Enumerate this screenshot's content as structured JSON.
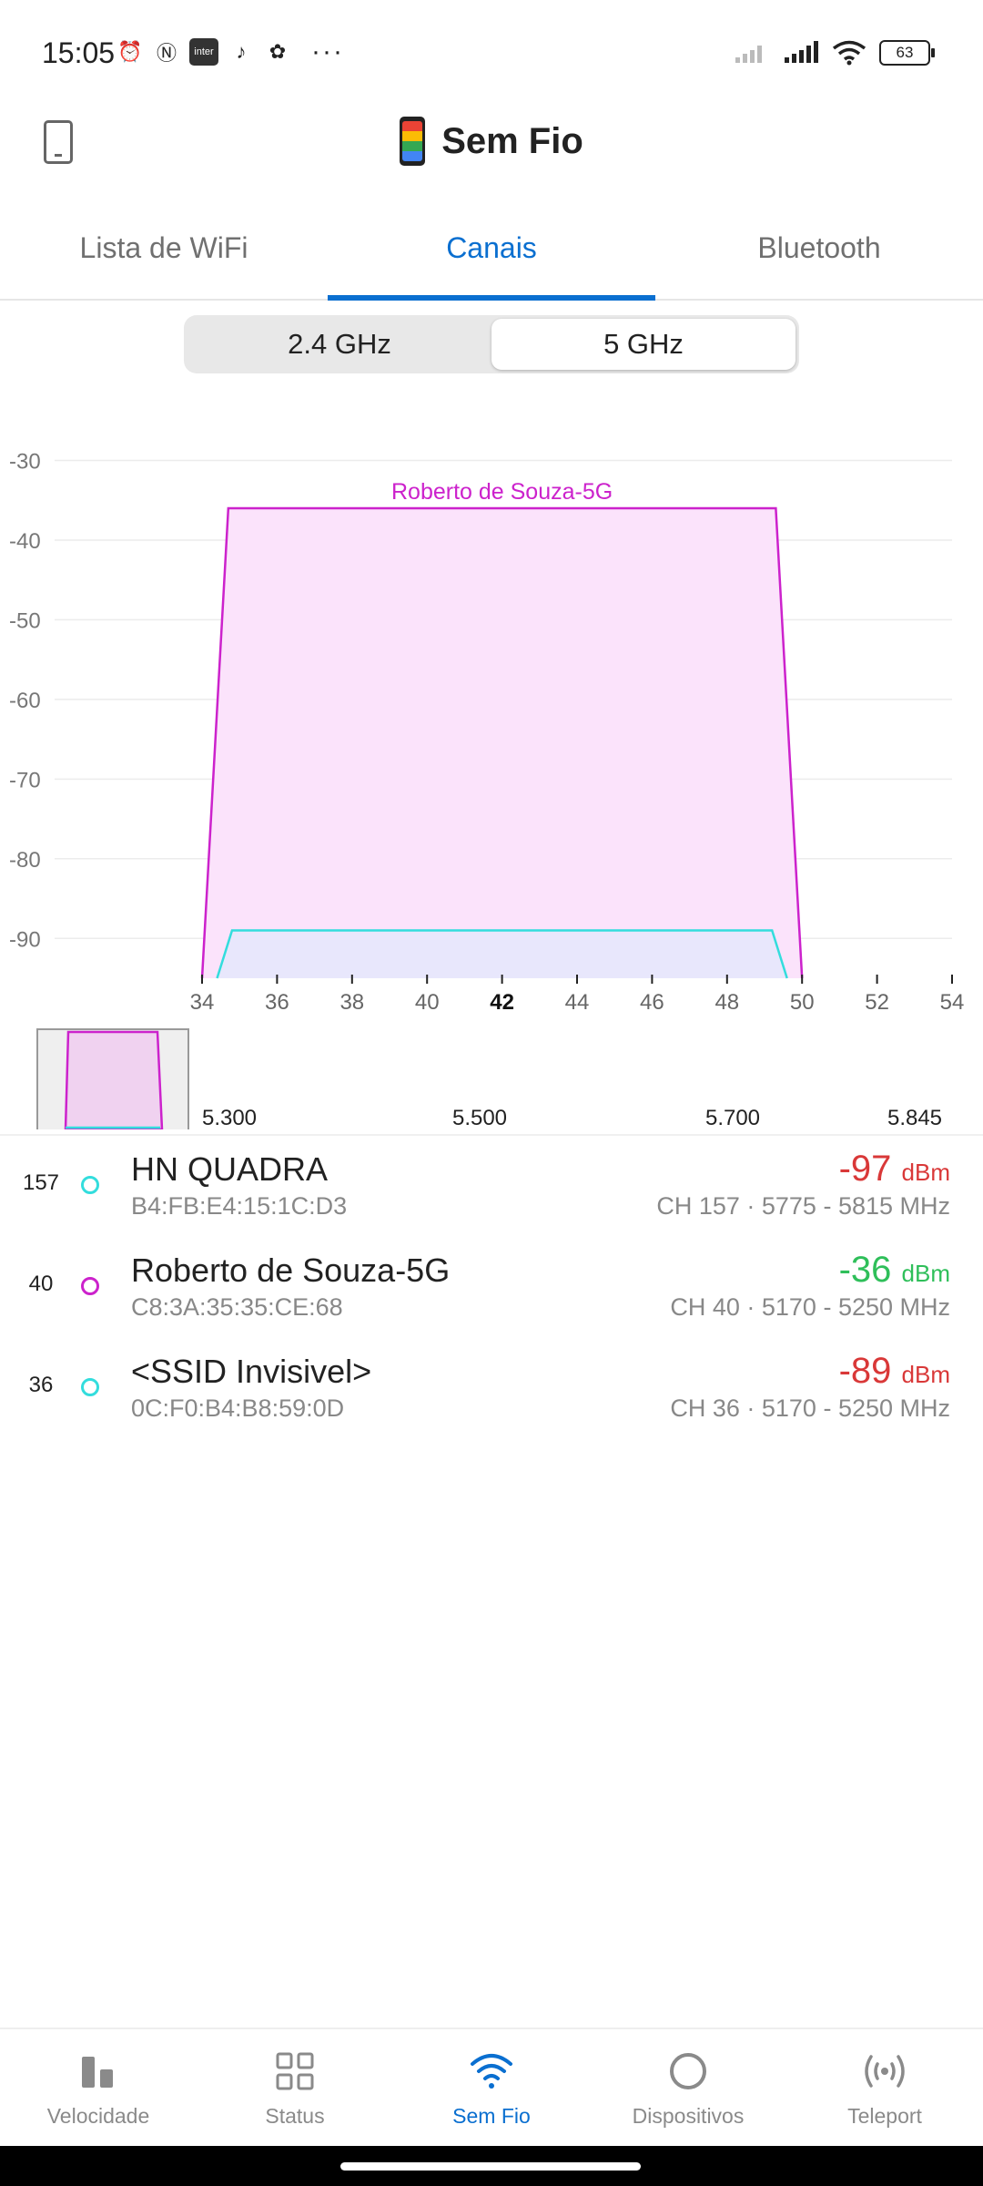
{
  "status_bar": {
    "time": "15:05",
    "left_icons": [
      "alarm-icon",
      "nfc-icon",
      "inter-app-icon",
      "tiktok-icon",
      "photos-icon"
    ],
    "inter_label": "inter",
    "more": "···",
    "battery": "63"
  },
  "header": {
    "title": "Sem Fio"
  },
  "tabs": [
    {
      "label": "Lista de WiFi",
      "active": false
    },
    {
      "label": "Canais",
      "active": true
    },
    {
      "label": "Bluetooth",
      "active": false
    }
  ],
  "band_selector": {
    "options": [
      "2.4 GHz",
      "5 GHz"
    ],
    "selected": "5 GHz"
  },
  "chart_data": {
    "type": "area",
    "y_ticks": [
      -30,
      -40,
      -50,
      -60,
      -70,
      -80,
      -90
    ],
    "ylim": [
      -95,
      -28
    ],
    "x_ticks": [
      "34",
      "36",
      "38",
      "40",
      "42",
      "44",
      "46",
      "48",
      "50",
      "52",
      "54"
    ],
    "x_bold_tick": "42",
    "xlim": [
      34,
      54
    ],
    "grid": true,
    "series": [
      {
        "name": "Roberto de Souza-5G",
        "channel_range": [
          34.7,
          49.3
        ],
        "base_range": [
          34,
          50
        ],
        "signal": -36,
        "color": "#cc22cc",
        "fill": "#fbe3fb"
      },
      {
        "name": "",
        "channel_range": [
          34.8,
          49.2
        ],
        "base_range": [
          34.4,
          49.6
        ],
        "signal": -89,
        "color": "#33dddd",
        "fill": "#e4e8fc"
      }
    ],
    "overview": {
      "freq_labels": [
        "5.300",
        "5.500",
        "5.700",
        "5.845"
      ]
    }
  },
  "access_points": [
    {
      "channel": "157",
      "name": "HN QUADRA",
      "mac": "B4:FB:E4:15:1C:D3",
      "signal": "-97",
      "unit": "dBm",
      "band": "CH 157 · 5775 - 5815 MHz",
      "signal_color": "#d93838",
      "dot_color": "#33dddd"
    },
    {
      "channel": "40",
      "name": "Roberto de Souza-5G",
      "mac": "C8:3A:35:35:CE:68",
      "signal": "-36",
      "unit": "dBm",
      "band": "CH 40 · 5170 - 5250 MHz",
      "signal_color": "#2fbf5a",
      "dot_color": "#cc22cc"
    },
    {
      "channel": "36",
      "name": "<SSID Invisivel>",
      "mac": "0C:F0:B4:B8:59:0D",
      "signal": "-89",
      "unit": "dBm",
      "band": "CH 36 · 5170 - 5250 MHz",
      "signal_color": "#d93838",
      "dot_color": "#33dddd"
    }
  ],
  "bottom_nav": [
    {
      "label": "Velocidade",
      "icon": "bar-chart-icon",
      "active": false
    },
    {
      "label": "Status",
      "icon": "grid-icon",
      "active": false
    },
    {
      "label": "Sem Fio",
      "icon": "wifi-icon",
      "active": true
    },
    {
      "label": "Dispositivos",
      "icon": "circle-icon",
      "active": false
    },
    {
      "label": "Teleport",
      "icon": "teleport-icon",
      "active": false
    }
  ]
}
